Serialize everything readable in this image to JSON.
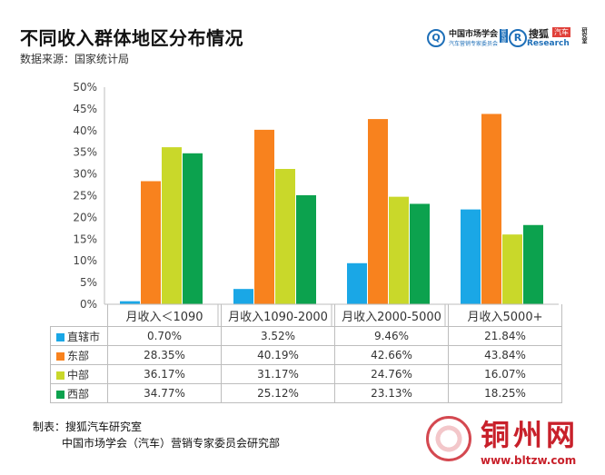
{
  "title": "不同收入群体地区分布情况",
  "source": "数据来源：国家统计局",
  "logos": {
    "cmc": {
      "line1": "中国市场学会",
      "line2": "汽车营销专家委员会",
      "tag": "研究部"
    },
    "sohu": {
      "name": "搜狐",
      "tag": "汽车",
      "research": "Research",
      "side": "研究室"
    }
  },
  "colors": {
    "直辖市": "#1aa7e6",
    "东部": "#f8821e",
    "中部": "#c9d82a",
    "西部": "#0ca24e",
    "axis": "#bdbdbd",
    "tick": "#444444"
  },
  "chart_data": {
    "type": "bar",
    "title": "不同收入群体地区分布情况",
    "categories": [
      "月收入＜1090",
      "月收入1090-2000",
      "月收入2000-5000",
      "月收入5000+"
    ],
    "series": [
      {
        "name": "直辖市",
        "values": [
          0.7,
          3.52,
          9.46,
          21.84
        ],
        "labels": [
          "0.70%",
          "3.52%",
          "9.46%",
          "21.84%"
        ]
      },
      {
        "name": "东部",
        "values": [
          28.35,
          40.19,
          42.66,
          43.84
        ],
        "labels": [
          "28.35%",
          "40.19%",
          "42.66%",
          "43.84%"
        ]
      },
      {
        "name": "中部",
        "values": [
          36.17,
          31.17,
          24.76,
          16.07
        ],
        "labels": [
          "36.17%",
          "31.17%",
          "24.76%",
          "16.07%"
        ]
      },
      {
        "name": "西部",
        "values": [
          34.77,
          25.12,
          23.13,
          18.25
        ],
        "labels": [
          "34.77%",
          "25.12%",
          "23.13%",
          "18.25%"
        ]
      }
    ],
    "ylim": [
      0,
      50
    ],
    "yticks": [
      "0%",
      "5%",
      "10%",
      "15%",
      "20%",
      "25%",
      "30%",
      "35%",
      "40%",
      "45%",
      "50%"
    ],
    "legend": "table-below",
    "grid": false
  },
  "credits": {
    "line1": "制表：搜狐汽车研究室",
    "line2": "中国市场学会（汽车）营销专家委员会研究部"
  },
  "watermark": {
    "title": "铜州网",
    "url": "www.bltzw.com"
  }
}
